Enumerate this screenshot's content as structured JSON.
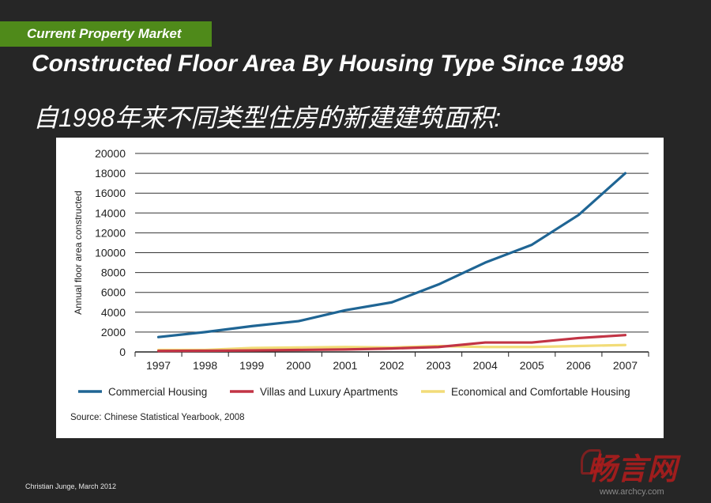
{
  "header": {
    "section_label": "Current Property Market",
    "title": "Constructed Floor Area By Housing Type Since 1998",
    "subtitle": "自1998年来不同类型住房的新建建筑面积:"
  },
  "footer": {
    "credit": "Christian Junge, March 2012"
  },
  "watermark": {
    "logo_text": "畅言网",
    "url": "www.archcy.com"
  },
  "colors": {
    "background": "#262626",
    "section_tag": "#4f8a1a",
    "commercial": "#1f6594",
    "villas": "#c23445",
    "economical": "#f2dc78"
  },
  "chart_data": {
    "type": "line",
    "title": "",
    "ylabel": "Annual floor area constructed",
    "xlabel": "",
    "x": [
      "1997",
      "1998",
      "1999",
      "2000",
      "2001",
      "2002",
      "2003",
      "2004",
      "2005",
      "2006",
      "2007"
    ],
    "ylim": [
      0,
      20000
    ],
    "yticks": [
      "0",
      "2000",
      "4000",
      "6000",
      "8000",
      "10000",
      "12000",
      "14000",
      "16000",
      "18000",
      "20000"
    ],
    "grid": true,
    "legend_position": "bottom",
    "series": [
      {
        "name": "Commercial Housing",
        "color": "#1f6594",
        "values": [
          1500,
          2000,
          2600,
          3100,
          4200,
          5000,
          6800,
          9000,
          10800,
          13800,
          18000
        ]
      },
      {
        "name": "Villas and Luxury Apartments",
        "color": "#c23445",
        "values": [
          100,
          120,
          150,
          200,
          250,
          350,
          500,
          950,
          950,
          1400,
          1700
        ]
      },
      {
        "name": "Economical and Comfortable Housing",
        "color": "#f2dc78",
        "values": [
          200,
          200,
          400,
          450,
          500,
          450,
          600,
          500,
          500,
          600,
          700
        ]
      }
    ],
    "source": "Source: Chinese Statistical Yearbook, 2008"
  }
}
